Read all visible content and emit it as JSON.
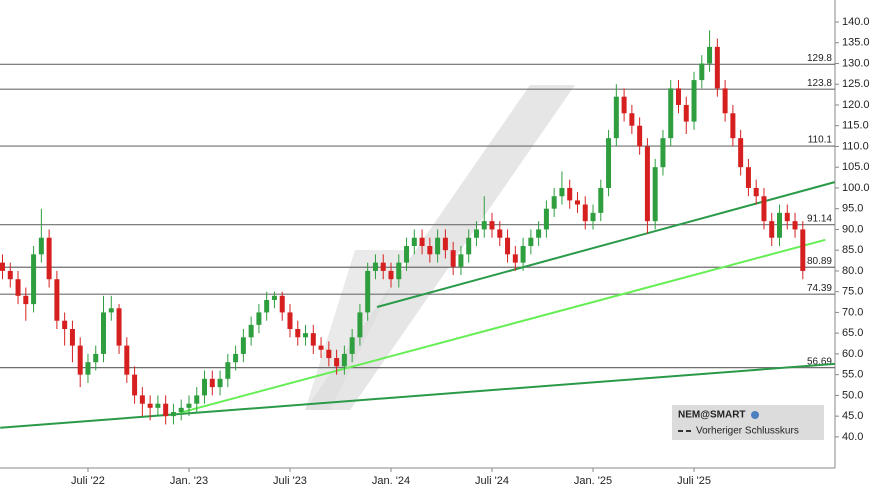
{
  "chart_data": {
    "type": "candlestick",
    "series": [
      {
        "name": "NEM@SMART",
        "up_color": "#2e9e3e",
        "down_color": "#d62020",
        "open": [
          82,
          80,
          78,
          74,
          72,
          84,
          88,
          78,
          68,
          66,
          62,
          55,
          58,
          60,
          70,
          71,
          62,
          55,
          50,
          48,
          47,
          48,
          45,
          46,
          47,
          48,
          50,
          54,
          52,
          54,
          58,
          60,
          64,
          67,
          70,
          73,
          74,
          70,
          66,
          64,
          65,
          62,
          61,
          59,
          57,
          60,
          64,
          70,
          80,
          82,
          80,
          78,
          82,
          86,
          88,
          86,
          84,
          88,
          85,
          81,
          84,
          88,
          90,
          92,
          90,
          88,
          84,
          82,
          86,
          88,
          90,
          95,
          98,
          100,
          97,
          96,
          92,
          94,
          100,
          112,
          122,
          118,
          115,
          110,
          92,
          105,
          112,
          124,
          120,
          116,
          126,
          130,
          134,
          124,
          118,
          112,
          105,
          100,
          98,
          92,
          88,
          94,
          92,
          90
        ],
        "high": [
          84,
          82,
          80,
          76,
          86,
          95,
          90,
          80,
          70,
          68,
          64,
          60,
          62,
          74,
          74,
          72,
          64,
          57,
          52,
          50,
          50,
          50,
          48,
          49,
          50,
          52,
          56,
          56,
          56,
          60,
          62,
          66,
          69,
          72,
          75,
          75,
          75,
          72,
          68,
          67,
          67,
          64,
          63,
          61,
          62,
          66,
          72,
          82,
          84,
          84,
          82,
          84,
          88,
          90,
          90,
          88,
          90,
          90,
          87,
          86,
          90,
          92,
          98,
          94,
          92,
          90,
          86,
          88,
          90,
          92,
          97,
          100,
          104,
          102,
          99,
          98,
          96,
          102,
          114,
          125,
          124,
          120,
          117,
          112,
          107,
          114,
          126,
          126,
          122,
          128,
          132,
          138,
          136,
          126,
          120,
          114,
          107,
          102,
          100,
          94,
          96,
          96,
          94,
          92
        ],
        "low": [
          78,
          76,
          72,
          68,
          70,
          82,
          76,
          66,
          62,
          58,
          52,
          53,
          56,
          58,
          68,
          60,
          53,
          48,
          45,
          44,
          45,
          43,
          43,
          44,
          45,
          46,
          48,
          50,
          50,
          52,
          56,
          58,
          62,
          65,
          68,
          71,
          68,
          64,
          62,
          62,
          60,
          59,
          57,
          55,
          55,
          58,
          62,
          68,
          78,
          78,
          76,
          76,
          80,
          84,
          84,
          82,
          82,
          83,
          79,
          79,
          82,
          86,
          88,
          88,
          86,
          82,
          80,
          80,
          84,
          86,
          88,
          93,
          96,
          95,
          94,
          90,
          90,
          92,
          98,
          110,
          116,
          113,
          108,
          89,
          90,
          103,
          110,
          118,
          113,
          114,
          124,
          128,
          122,
          116,
          110,
          103,
          98,
          96,
          90,
          86,
          86,
          90,
          88,
          78
        ],
        "close": [
          80,
          78,
          74,
          72,
          84,
          88,
          78,
          68,
          66,
          62,
          55,
          58,
          60,
          70,
          71,
          62,
          55,
          50,
          48,
          47,
          48,
          45,
          46,
          47,
          48,
          50,
          54,
          52,
          54,
          58,
          60,
          64,
          67,
          70,
          73,
          74,
          70,
          66,
          64,
          65,
          62,
          61,
          59,
          57,
          60,
          64,
          70,
          80,
          82,
          80,
          78,
          82,
          86,
          88,
          86,
          84,
          88,
          85,
          81,
          84,
          88,
          90,
          92,
          90,
          88,
          84,
          82,
          86,
          88,
          90,
          95,
          98,
          100,
          97,
          96,
          92,
          94,
          100,
          112,
          122,
          118,
          115,
          110,
          92,
          105,
          112,
          124,
          120,
          116,
          126,
          130,
          134,
          124,
          118,
          112,
          105,
          100,
          98,
          92,
          88,
          94,
          92,
          90,
          80
        ]
      }
    ],
    "categories": [
      null,
      null,
      null,
      null,
      null,
      null,
      null,
      null,
      null,
      null,
      null,
      "Juli '22",
      null,
      null,
      null,
      null,
      null,
      null,
      null,
      null,
      null,
      null,
      null,
      null,
      "Jan. '23",
      null,
      null,
      null,
      null,
      null,
      null,
      null,
      null,
      null,
      null,
      null,
      null,
      "Juli '23",
      null,
      null,
      null,
      null,
      null,
      null,
      null,
      null,
      null,
      null,
      null,
      null,
      "Jan. '24",
      null,
      null,
      null,
      null,
      null,
      null,
      null,
      null,
      null,
      null,
      null,
      null,
      "Juli '24",
      null,
      null,
      null,
      null,
      null,
      null,
      null,
      null,
      null,
      null,
      null,
      null,
      "Jan. '25",
      null,
      null,
      null,
      null,
      null,
      null,
      null,
      null,
      null,
      null,
      null,
      null,
      "Juli '25",
      null,
      null,
      null,
      null,
      null,
      null,
      null,
      null,
      null,
      null,
      null,
      null,
      null,
      null
    ],
    "ylim": [
      32.5,
      145.3
    ],
    "yticks": [
      {
        "value": 40,
        "label": "40.0"
      },
      {
        "value": 45,
        "label": "45.0"
      },
      {
        "value": 50,
        "label": "50.0"
      },
      {
        "value": 55,
        "label": "55.0"
      },
      {
        "value": 60,
        "label": "60.0"
      },
      {
        "value": 65,
        "label": "65.0"
      },
      {
        "value": 70,
        "label": "70.0"
      },
      {
        "value": 75,
        "label": "75.0"
      },
      {
        "value": 80,
        "label": "80.0"
      },
      {
        "value": 85,
        "label": "85.0"
      },
      {
        "value": 90,
        "label": "90.0"
      },
      {
        "value": 95,
        "label": "95.0"
      },
      {
        "value": 100,
        "label": "100.0"
      },
      {
        "value": 105,
        "label": "105.0"
      },
      {
        "value": 110,
        "label": "110.0"
      },
      {
        "value": 115,
        "label": "115.0"
      },
      {
        "value": 120,
        "label": "120.0"
      },
      {
        "value": 125,
        "label": "125.0"
      },
      {
        "value": 130,
        "label": "130.0"
      },
      {
        "value": 135,
        "label": "135.0"
      },
      {
        "value": 140,
        "label": "140.0"
      }
    ],
    "levels": [
      129.8,
      123.8,
      110.1,
      91.14,
      80.89,
      74.39,
      56.69
    ],
    "level_color": "#6e6e6e",
    "trendlines": [
      {
        "color": "#2a9a48",
        "x": [
          -0.3,
          107.1
        ],
        "values": [
          42.2,
          57.6
        ]
      },
      {
        "color": "#2a9a48",
        "x": [
          48.2,
          107.1
        ],
        "values": [
          71.3,
          101.4
        ]
      },
      {
        "color": "#66ee55",
        "x": [
          22.8,
          105.9
        ],
        "values": [
          45.8,
          87.5
        ]
      }
    ],
    "legend": {
      "dashed_label": "Vorheriger Schlusskurs"
    }
  }
}
